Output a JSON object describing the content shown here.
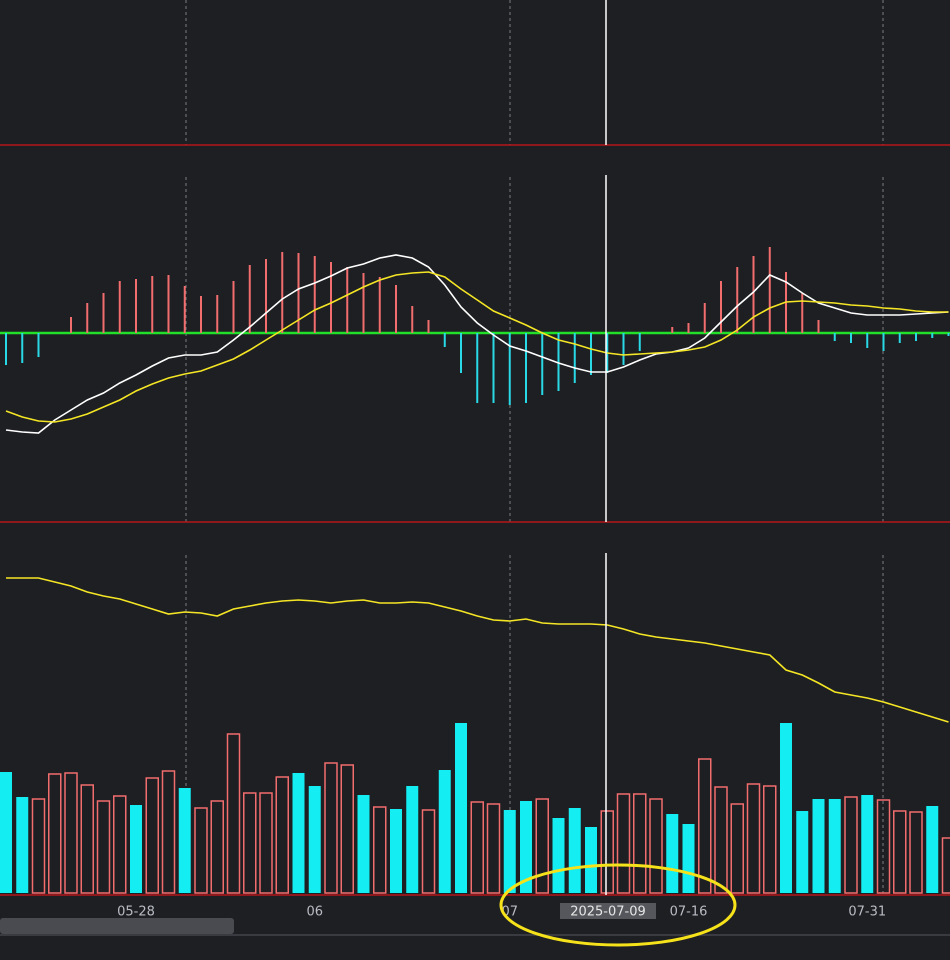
{
  "chart_data": [
    {
      "type": "macd",
      "ylim": [
        -189,
        158
      ],
      "zero_line_color": "#22e02a",
      "up_color": "#f26d6d",
      "down_color": "#29d9e6",
      "histogram": [
        -32,
        -30,
        -24,
        0,
        16,
        30,
        40,
        52,
        54,
        57,
        58,
        47,
        37,
        38,
        52,
        68,
        74,
        81,
        80,
        77,
        71,
        66,
        60,
        56,
        48,
        27,
        13,
        -14,
        -40,
        -70,
        -70,
        -72,
        -70,
        -62,
        -58,
        -50,
        -42,
        -40,
        -32,
        -18,
        0,
        6,
        10,
        30,
        52,
        66,
        77,
        86,
        61,
        40,
        13,
        -8,
        -10,
        -15,
        -18,
        -10,
        -8,
        -5,
        -3
      ],
      "series": [
        {
          "color": "#ffffff",
          "values": [
            -97,
            -99,
            -100,
            -87,
            -77,
            -67,
            -60,
            -50,
            -42,
            -33,
            -25,
            -22,
            -22,
            -19,
            -7,
            6,
            20,
            34,
            44,
            50,
            57,
            65,
            69,
            75,
            78,
            75,
            66,
            48,
            26,
            10,
            -2,
            -13,
            -18,
            -24,
            -30,
            -35,
            -39,
            -39,
            -34,
            -27,
            -21,
            -19,
            -15,
            -5,
            11,
            27,
            41,
            58,
            51,
            40,
            30,
            25,
            20,
            18,
            18,
            18,
            19,
            20,
            21
          ]
        },
        {
          "color": "#f5e625",
          "values": [
            -78,
            -84,
            -88,
            -89,
            -86,
            -81,
            -74,
            -67,
            -58,
            -51,
            -45,
            -41,
            -38,
            -32,
            -26,
            -17,
            -7,
            3,
            13,
            23,
            30,
            38,
            46,
            53,
            58,
            60,
            61,
            56,
            44,
            33,
            22,
            15,
            8,
            0,
            -7,
            -11,
            -16,
            -20,
            -22,
            -21,
            -20,
            -19,
            -17,
            -14,
            -7,
            3,
            16,
            25,
            31,
            32,
            31,
            30,
            28,
            27,
            25,
            24,
            22,
            21,
            21
          ]
        }
      ]
    },
    {
      "type": "line",
      "ylim": [
        7,
        355
      ],
      "color": "#f5e625",
      "values": [
        322,
        322,
        322,
        318,
        314,
        308,
        304,
        301,
        296,
        291,
        286,
        288,
        287,
        284,
        291,
        294,
        297,
        299,
        300,
        299,
        297,
        299,
        300,
        297,
        297,
        298,
        297,
        293,
        289,
        284,
        280,
        279,
        281,
        277,
        276,
        276,
        276,
        275,
        271,
        266,
        263,
        261,
        259,
        257,
        254,
        251,
        248,
        245,
        230,
        225,
        217,
        208,
        205,
        202,
        198,
        193,
        188,
        183,
        178
      ]
    },
    {
      "type": "bar",
      "ylim": [
        0,
        348
      ],
      "categories": [
        null,
        null,
        null,
        null,
        null,
        null,
        null,
        null,
        "05-28",
        null,
        null,
        null,
        null,
        null,
        null,
        null,
        null,
        null,
        null,
        "06",
        null,
        null,
        null,
        null,
        null,
        null,
        null,
        null,
        null,
        null,
        null,
        "07",
        null,
        null,
        null,
        null,
        null,
        null,
        null,
        null,
        null,
        null,
        "07-16",
        null,
        null,
        null,
        null,
        null,
        null,
        null,
        null,
        null,
        null,
        "07-31",
        null,
        null,
        null,
        null,
        null
      ],
      "values": [
        121,
        96,
        94,
        119,
        120,
        108,
        92,
        97,
        88,
        115,
        122,
        105,
        85,
        92,
        159,
        100,
        100,
        116,
        120,
        107,
        130,
        128,
        98,
        86,
        84,
        107,
        83,
        123,
        170,
        91,
        89,
        83,
        92,
        94,
        75,
        85,
        66,
        82,
        99,
        99,
        94,
        79,
        69,
        134,
        106,
        89,
        109,
        107,
        170,
        82,
        94,
        94,
        96,
        98,
        93,
        82,
        81,
        87,
        55
      ],
      "filled": [
        true,
        true,
        false,
        false,
        false,
        false,
        false,
        false,
        true,
        false,
        false,
        true,
        false,
        false,
        false,
        false,
        false,
        false,
        true,
        true,
        false,
        false,
        true,
        false,
        true,
        true,
        false,
        true,
        true,
        false,
        false,
        true,
        true,
        false,
        true,
        true,
        true,
        false,
        false,
        false,
        false,
        true,
        true,
        false,
        false,
        false,
        false,
        false,
        true,
        true,
        true,
        true,
        false,
        true,
        false,
        false,
        false,
        true,
        false
      ],
      "up_color": "#f26d6d",
      "down_color": "#14eef2"
    }
  ],
  "crosshair_label": "2025-07-09"
}
